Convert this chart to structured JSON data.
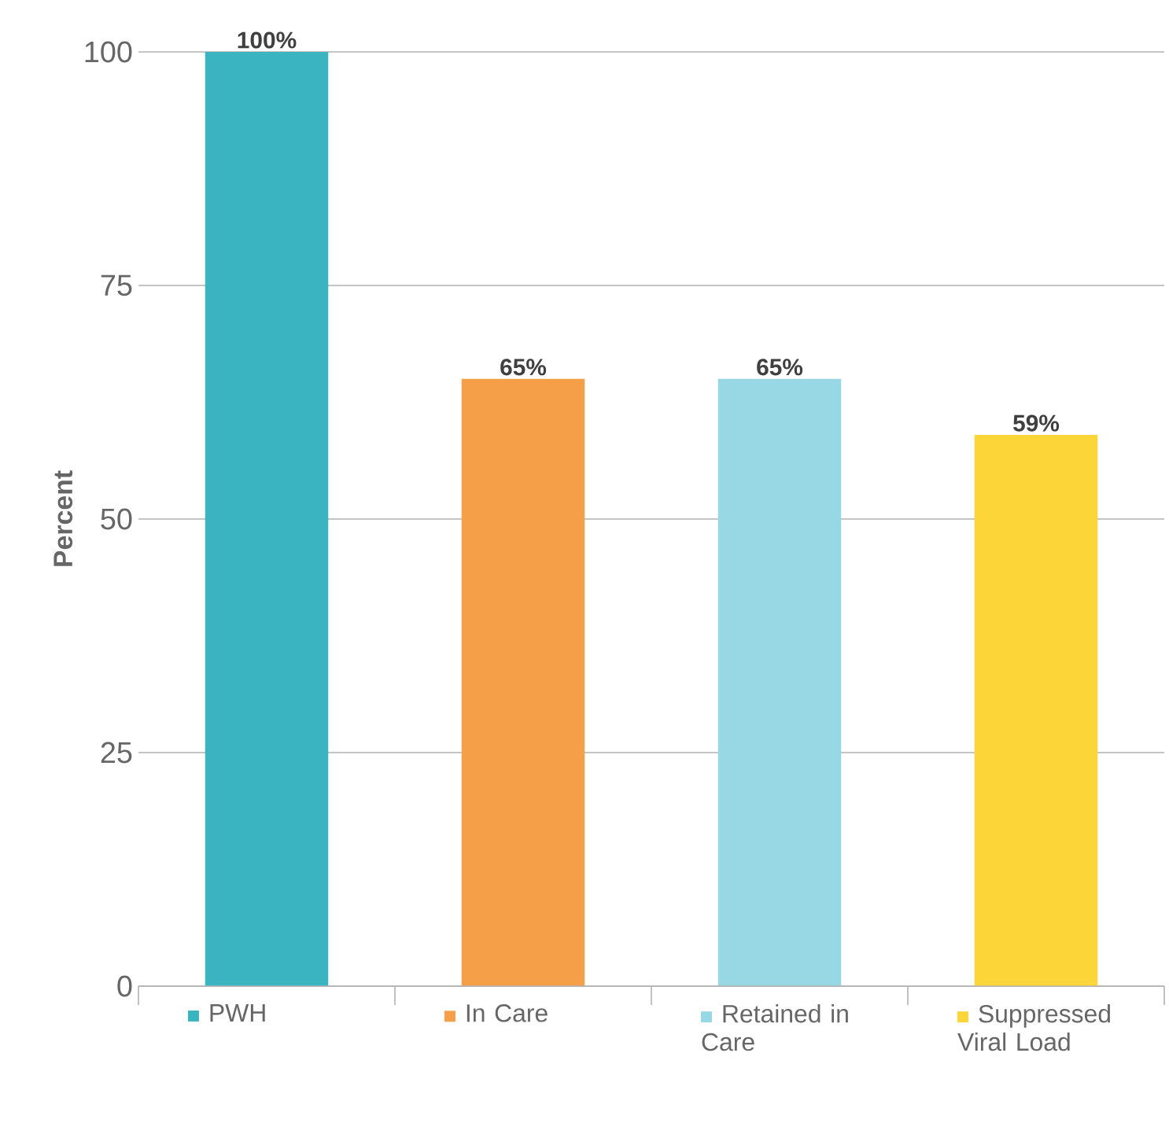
{
  "chart_data": {
    "type": "bar",
    "ylabel": "Percent",
    "categories": [
      "PWH",
      "In Care",
      "Retained in Care",
      "Suppressed Viral Load"
    ],
    "values": [
      100,
      65,
      65,
      59
    ],
    "colors": [
      "#3ab4c1",
      "#f5a048",
      "#98d8e4",
      "#fcd538"
    ],
    "value_labels": [
      "100%",
      "65%",
      "65%",
      "59%"
    ],
    "ylim": [
      0,
      100
    ],
    "yticks": [
      0,
      25,
      50,
      75,
      100
    ],
    "grid": "y"
  }
}
